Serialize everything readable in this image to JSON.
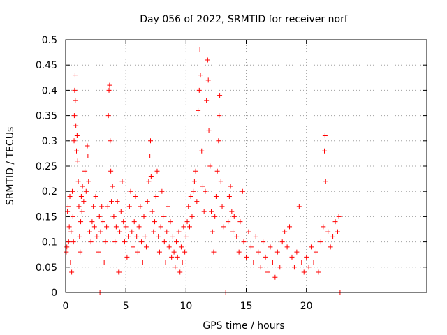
{
  "chart_data": {
    "type": "scatter",
    "title": "Day 056 of 2022, SRMTID for receiver norf",
    "xlabel": "GPS time / hours",
    "ylabel": "SRMTID / TECUs",
    "xlim": [
      0,
      30
    ],
    "ylim": [
      0,
      0.5
    ],
    "xticks": [
      0,
      5,
      10,
      15,
      20
    ],
    "yticks": [
      0,
      0.05,
      0.1,
      0.15,
      0.2,
      0.25,
      0.3,
      0.35,
      0.4,
      0.45,
      0.5
    ],
    "xtick_labels": [
      "0",
      "5",
      "10",
      "15",
      "20"
    ],
    "ytick_labels": [
      "0",
      "0.05",
      "0.1",
      "0.15",
      "0.2",
      "0.25",
      "0.3",
      "0.35",
      "0.4",
      "0.45",
      "0.5"
    ],
    "grid": true,
    "marker": "+",
    "color": "#ff0000",
    "series": [
      {
        "points": [
          [
            0.05,
            0.08
          ],
          [
            0.1,
            0.09
          ],
          [
            0.15,
            0.16
          ],
          [
            0.2,
            0.17
          ],
          [
            0.25,
            0.1
          ],
          [
            0.3,
            0.13
          ],
          [
            0.35,
            0.19
          ],
          [
            0.4,
            0.06
          ],
          [
            0.45,
            0.12
          ],
          [
            0.5,
            0.04
          ],
          [
            0.55,
            0.2
          ],
          [
            0.6,
            0.15
          ],
          [
            0.65,
            0.1
          ],
          [
            0.7,
            0.3
          ],
          [
            0.72,
            0.35
          ],
          [
            0.75,
            0.4
          ],
          [
            0.78,
            0.43
          ],
          [
            0.8,
            0.38
          ],
          [
            0.85,
            0.33
          ],
          [
            0.9,
            0.28
          ],
          [
            0.95,
            0.31
          ],
          [
            1.0,
            0.26
          ],
          [
            1.05,
            0.22
          ],
          [
            1.1,
            0.17
          ],
          [
            1.15,
            0.11
          ],
          [
            1.2,
            0.08
          ],
          [
            1.25,
            0.14
          ],
          [
            1.3,
            0.19
          ],
          [
            1.35,
            0.16
          ],
          [
            1.4,
            0.21
          ],
          [
            1.5,
            0.18
          ],
          [
            1.6,
            0.24
          ],
          [
            1.7,
            0.2
          ],
          [
            1.8,
            0.29
          ],
          [
            1.85,
            0.27
          ],
          [
            1.9,
            0.22
          ],
          [
            2.0,
            0.12
          ],
          [
            2.1,
            0.1
          ],
          [
            2.2,
            0.14
          ],
          [
            2.3,
            0.17
          ],
          [
            2.4,
            0.13
          ],
          [
            2.5,
            0.19
          ],
          [
            2.6,
            0.11
          ],
          [
            2.7,
            0.08
          ],
          [
            2.8,
            0.15
          ],
          [
            2.85,
            0.0
          ],
          [
            2.9,
            0.12
          ],
          [
            3.0,
            0.17
          ],
          [
            3.1,
            0.14
          ],
          [
            3.2,
            0.06
          ],
          [
            3.3,
            0.1
          ],
          [
            3.4,
            0.13
          ],
          [
            3.5,
            0.17
          ],
          [
            3.55,
            0.35
          ],
          [
            3.6,
            0.4
          ],
          [
            3.65,
            0.41
          ],
          [
            3.7,
            0.3
          ],
          [
            3.75,
            0.24
          ],
          [
            3.8,
            0.18
          ],
          [
            3.9,
            0.21
          ],
          [
            4.0,
            0.15
          ],
          [
            4.1,
            0.1
          ],
          [
            4.2,
            0.13
          ],
          [
            4.3,
            0.18
          ],
          [
            4.4,
            0.04
          ],
          [
            4.45,
            0.04
          ],
          [
            4.5,
            0.12
          ],
          [
            4.6,
            0.16
          ],
          [
            4.7,
            0.22
          ],
          [
            4.8,
            0.14
          ],
          [
            4.9,
            0.1
          ],
          [
            5.0,
            0.13
          ],
          [
            5.1,
            0.07
          ],
          [
            5.2,
            0.11
          ],
          [
            5.3,
            0.17
          ],
          [
            5.4,
            0.2
          ],
          [
            5.5,
            0.12
          ],
          [
            5.6,
            0.09
          ],
          [
            5.7,
            0.14
          ],
          [
            5.8,
            0.19
          ],
          [
            5.9,
            0.11
          ],
          [
            6.0,
            0.08
          ],
          [
            6.1,
            0.13
          ],
          [
            6.2,
            0.17
          ],
          [
            6.3,
            0.1
          ],
          [
            6.4,
            0.06
          ],
          [
            6.5,
            0.15
          ],
          [
            6.6,
            0.11
          ],
          [
            6.7,
            0.09
          ],
          [
            6.8,
            0.18
          ],
          [
            6.9,
            0.22
          ],
          [
            7.0,
            0.27
          ],
          [
            7.05,
            0.3
          ],
          [
            7.1,
            0.23
          ],
          [
            7.2,
            0.16
          ],
          [
            7.3,
            0.12
          ],
          [
            7.4,
            0.14
          ],
          [
            7.5,
            0.19
          ],
          [
            7.6,
            0.24
          ],
          [
            7.7,
            0.11
          ],
          [
            7.8,
            0.08
          ],
          [
            7.9,
            0.13
          ],
          [
            8.0,
            0.2
          ],
          [
            8.1,
            0.15
          ],
          [
            8.2,
            0.1
          ],
          [
            8.3,
            0.06
          ],
          [
            8.4,
            0.12
          ],
          [
            8.5,
            0.17
          ],
          [
            8.6,
            0.09
          ],
          [
            8.7,
            0.14
          ],
          [
            8.8,
            0.07
          ],
          [
            8.9,
            0.11
          ],
          [
            9.0,
            0.08
          ],
          [
            9.1,
            0.05
          ],
          [
            9.2,
            0.1
          ],
          [
            9.3,
            0.07
          ],
          [
            9.4,
            0.12
          ],
          [
            9.5,
            0.04
          ],
          [
            9.6,
            0.09
          ],
          [
            9.7,
            0.06
          ],
          [
            9.8,
            0.13
          ],
          [
            9.9,
            0.08
          ],
          [
            10.0,
            0.11
          ],
          [
            10.1,
            0.14
          ],
          [
            10.2,
            0.17
          ],
          [
            10.3,
            0.13
          ],
          [
            10.4,
            0.19
          ],
          [
            10.5,
            0.15
          ],
          [
            10.6,
            0.2
          ],
          [
            10.7,
            0.22
          ],
          [
            10.8,
            0.24
          ],
          [
            10.9,
            0.18
          ],
          [
            11.0,
            0.36
          ],
          [
            11.1,
            0.4
          ],
          [
            11.15,
            0.48
          ],
          [
            11.2,
            0.43
          ],
          [
            11.3,
            0.28
          ],
          [
            11.4,
            0.21
          ],
          [
            11.5,
            0.16
          ],
          [
            11.6,
            0.2
          ],
          [
            11.7,
            0.38
          ],
          [
            11.8,
            0.46
          ],
          [
            11.85,
            0.42
          ],
          [
            11.9,
            0.32
          ],
          [
            12.0,
            0.25
          ],
          [
            12.1,
            0.16
          ],
          [
            12.2,
            0.12
          ],
          [
            12.3,
            0.08
          ],
          [
            12.4,
            0.15
          ],
          [
            12.5,
            0.19
          ],
          [
            12.6,
            0.24
          ],
          [
            12.7,
            0.3
          ],
          [
            12.75,
            0.35
          ],
          [
            12.8,
            0.39
          ],
          [
            12.9,
            0.22
          ],
          [
            13.0,
            0.17
          ],
          [
            13.1,
            0.13
          ],
          [
            13.3,
            0.0
          ],
          [
            13.5,
            0.14
          ],
          [
            13.6,
            0.19
          ],
          [
            13.7,
            0.21
          ],
          [
            13.8,
            0.16
          ],
          [
            13.9,
            0.12
          ],
          [
            14.0,
            0.15
          ],
          [
            14.2,
            0.11
          ],
          [
            14.4,
            0.08
          ],
          [
            14.5,
            0.14
          ],
          [
            14.7,
            0.2
          ],
          [
            14.8,
            0.1
          ],
          [
            15.0,
            0.07
          ],
          [
            15.2,
            0.12
          ],
          [
            15.4,
            0.09
          ],
          [
            15.6,
            0.06
          ],
          [
            15.8,
            0.11
          ],
          [
            16.0,
            0.08
          ],
          [
            16.2,
            0.05
          ],
          [
            16.4,
            0.1
          ],
          [
            16.6,
            0.07
          ],
          [
            16.8,
            0.04
          ],
          [
            17.0,
            0.09
          ],
          [
            17.2,
            0.06
          ],
          [
            17.4,
            0.03
          ],
          [
            17.6,
            0.08
          ],
          [
            17.8,
            0.05
          ],
          [
            18.0,
            0.1
          ],
          [
            18.2,
            0.12
          ],
          [
            18.4,
            0.09
          ],
          [
            18.6,
            0.13
          ],
          [
            18.8,
            0.07
          ],
          [
            19.0,
            0.05
          ],
          [
            19.2,
            0.08
          ],
          [
            19.4,
            0.17
          ],
          [
            19.6,
            0.06
          ],
          [
            19.8,
            0.04
          ],
          [
            20.0,
            0.07
          ],
          [
            20.2,
            0.05
          ],
          [
            20.4,
            0.09
          ],
          [
            20.6,
            0.06
          ],
          [
            20.8,
            0.08
          ],
          [
            21.0,
            0.04
          ],
          [
            21.2,
            0.1
          ],
          [
            21.4,
            0.13
          ],
          [
            21.5,
            0.28
          ],
          [
            21.55,
            0.31
          ],
          [
            21.6,
            0.22
          ],
          [
            21.8,
            0.12
          ],
          [
            22.0,
            0.09
          ],
          [
            22.2,
            0.11
          ],
          [
            22.4,
            0.14
          ],
          [
            22.6,
            0.12
          ],
          [
            22.7,
            0.15
          ],
          [
            22.8,
            0.0
          ]
        ]
      }
    ]
  }
}
